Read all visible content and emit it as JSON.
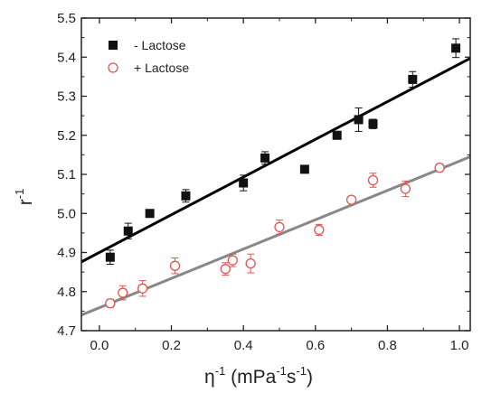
{
  "chart_data": {
    "type": "scatter",
    "xlabel": "η",
    "xlabel_sup": "-1",
    "xlabel_units_open": " (mPa",
    "xlabel_units_sup1": "-1",
    "xlabel_units_mid": "s",
    "xlabel_units_sup2": "-1",
    "xlabel_units_close": ")",
    "ylabel": "r",
    "ylabel_sup": "-1",
    "xlim": [
      -0.05,
      1.03
    ],
    "ylim": [
      4.7,
      5.5
    ],
    "x_ticks": [
      "0.0",
      "0.2",
      "0.4",
      "0.6",
      "0.8",
      "1.0"
    ],
    "y_ticks": [
      "4.7",
      "4.8",
      "4.9",
      "5.0",
      "5.1",
      "5.2",
      "5.3",
      "5.4",
      "5.5"
    ],
    "legend_position": "top-left",
    "series": [
      {
        "name": "- Lactose",
        "marker": "filled-square",
        "color": "#111111",
        "fit_color": "#000000",
        "fit": {
          "x": [
            -0.05,
            1.03
          ],
          "y": [
            4.876,
            5.397
          ]
        },
        "points": [
          {
            "x": 0.03,
            "y": 4.888,
            "err": 0.018
          },
          {
            "x": 0.08,
            "y": 4.955,
            "err": 0.02
          },
          {
            "x": 0.14,
            "y": 5.0,
            "err": 0.008
          },
          {
            "x": 0.24,
            "y": 5.045,
            "err": 0.016
          },
          {
            "x": 0.4,
            "y": 5.078,
            "err": 0.02
          },
          {
            "x": 0.46,
            "y": 5.142,
            "err": 0.016
          },
          {
            "x": 0.57,
            "y": 5.113,
            "err": 0.004
          },
          {
            "x": 0.66,
            "y": 5.2,
            "err": 0.01
          },
          {
            "x": 0.72,
            "y": 5.24,
            "err": 0.03
          },
          {
            "x": 0.76,
            "y": 5.229,
            "err": 0.012
          },
          {
            "x": 0.87,
            "y": 5.343,
            "err": 0.02
          },
          {
            "x": 0.99,
            "y": 5.423,
            "err": 0.024
          }
        ]
      },
      {
        "name": "+ Lactose",
        "marker": "open-circle",
        "color": "#e0554f",
        "fit_color": "#888888",
        "fit": {
          "x": [
            -0.05,
            1.03
          ],
          "y": [
            4.74,
            5.145
          ]
        },
        "points": [
          {
            "x": 0.03,
            "y": 4.77,
            "err": 0.01
          },
          {
            "x": 0.065,
            "y": 4.797,
            "err": 0.018
          },
          {
            "x": 0.12,
            "y": 4.808,
            "err": 0.02
          },
          {
            "x": 0.21,
            "y": 4.866,
            "err": 0.02
          },
          {
            "x": 0.35,
            "y": 4.858,
            "err": 0.016
          },
          {
            "x": 0.37,
            "y": 4.88,
            "err": 0.016
          },
          {
            "x": 0.42,
            "y": 4.872,
            "err": 0.024
          },
          {
            "x": 0.5,
            "y": 4.965,
            "err": 0.018
          },
          {
            "x": 0.61,
            "y": 4.958,
            "err": 0.014
          },
          {
            "x": 0.7,
            "y": 5.035,
            "err": 0.008
          },
          {
            "x": 0.76,
            "y": 5.085,
            "err": 0.018
          },
          {
            "x": 0.85,
            "y": 5.063,
            "err": 0.02
          },
          {
            "x": 0.945,
            "y": 5.117,
            "err": 0.01
          }
        ]
      }
    ]
  }
}
